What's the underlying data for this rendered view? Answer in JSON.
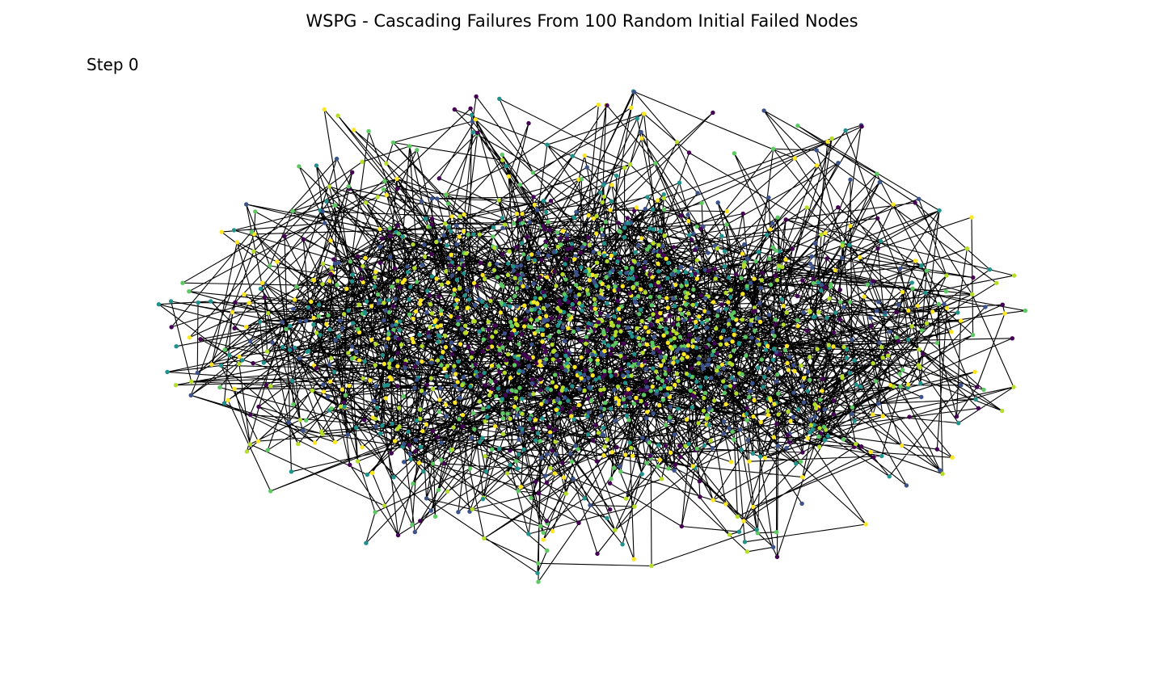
{
  "figure": {
    "title": "WSPG - Cascading Failures From 100 Random Initial Failed Nodes",
    "step_label": "Step 0"
  },
  "graph": {
    "edge_color": "#000000",
    "node_palette": [
      "#440154",
      "#3b528b",
      "#21918c",
      "#5ec962",
      "#b5de2b",
      "#fde725"
    ]
  }
}
